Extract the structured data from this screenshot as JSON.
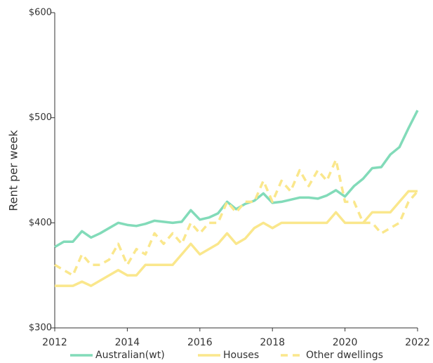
{
  "chart_data": {
    "type": "line",
    "y_label": "Rent per week",
    "x": [
      2012,
      2012.25,
      2012.5,
      2012.75,
      2013,
      2013.25,
      2013.5,
      2013.75,
      2014,
      2014.25,
      2014.5,
      2014.75,
      2015,
      2015.25,
      2015.5,
      2015.75,
      2016,
      2016.25,
      2016.5,
      2016.75,
      2017,
      2017.25,
      2017.5,
      2017.75,
      2018,
      2018.25,
      2018.5,
      2018.75,
      2019,
      2019.25,
      2019.5,
      2019.75,
      2020,
      2020.25,
      2020.5,
      2020.75,
      2021,
      2021.25,
      2021.5,
      2021.75,
      2022
    ],
    "series": [
      {
        "name": "Australian(wt)",
        "color": "#82dbb9",
        "dash": false,
        "values": [
          377,
          382,
          382,
          392,
          386,
          390,
          395,
          400,
          398,
          397,
          399,
          402,
          401,
          400,
          401,
          412,
          403,
          405,
          409,
          420,
          413,
          418,
          421,
          428,
          419,
          420,
          422,
          424,
          424,
          423,
          426,
          431,
          425,
          435,
          442,
          452,
          453,
          465,
          472,
          490,
          507
        ]
      },
      {
        "name": "Houses",
        "color": "#fae78c",
        "dash": false,
        "values": [
          340,
          340,
          340,
          344,
          340,
          345,
          350,
          355,
          350,
          350,
          360,
          360,
          360,
          360,
          370,
          380,
          370,
          375,
          380,
          390,
          380,
          385,
          395,
          400,
          395,
          400,
          400,
          400,
          400,
          400,
          400,
          410,
          400,
          400,
          400,
          410,
          410,
          410,
          420,
          430,
          430
        ]
      },
      {
        "name": "Other dwellings",
        "color": "#fae78c",
        "dash": true,
        "values": [
          360,
          355,
          350,
          370,
          360,
          360,
          365,
          380,
          360,
          375,
          370,
          390,
          380,
          390,
          380,
          400,
          390,
          400,
          400,
          420,
          410,
          420,
          420,
          440,
          420,
          440,
          430,
          450,
          435,
          450,
          440,
          460,
          420,
          420,
          400,
          400,
          390,
          395,
          400,
          420,
          430
        ]
      }
    ],
    "xlim": [
      2012,
      2022
    ],
    "xticks": [
      2012,
      2014,
      2016,
      2018,
      2020,
      2022
    ],
    "ylim": [
      300,
      600
    ],
    "yticks": [
      {
        "value": 300,
        "label": "$300"
      },
      {
        "value": 400,
        "label": "$400"
      },
      {
        "value": 500,
        "label": "$500"
      },
      {
        "value": 600,
        "label": "$600"
      }
    ],
    "grid": false,
    "legend": "bottom"
  }
}
